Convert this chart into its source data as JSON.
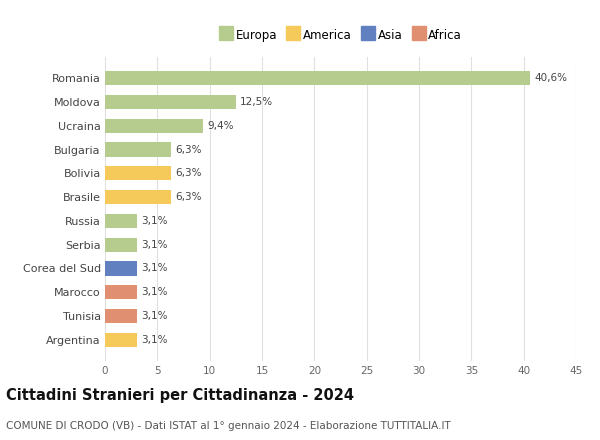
{
  "categories": [
    "Romania",
    "Moldova",
    "Ucraina",
    "Bulgaria",
    "Bolivia",
    "Brasile",
    "Russia",
    "Serbia",
    "Corea del Sud",
    "Marocco",
    "Tunisia",
    "Argentina"
  ],
  "values": [
    40.6,
    12.5,
    9.4,
    6.3,
    6.3,
    6.3,
    3.1,
    3.1,
    3.1,
    3.1,
    3.1,
    3.1
  ],
  "labels": [
    "40,6%",
    "12,5%",
    "9,4%",
    "6,3%",
    "6,3%",
    "6,3%",
    "3,1%",
    "3,1%",
    "3,1%",
    "3,1%",
    "3,1%",
    "3,1%"
  ],
  "colors": [
    "#b5cc8e",
    "#b5cc8e",
    "#b5cc8e",
    "#b5cc8e",
    "#f5ca5a",
    "#f5ca5a",
    "#b5cc8e",
    "#b5cc8e",
    "#6080c0",
    "#e09070",
    "#e09070",
    "#f5ca5a"
  ],
  "legend_labels": [
    "Europa",
    "America",
    "Asia",
    "Africa"
  ],
  "legend_colors": [
    "#b5cc8e",
    "#f5ca5a",
    "#6080c0",
    "#e09070"
  ],
  "title": "Cittadini Stranieri per Cittadinanza - 2024",
  "subtitle": "COMUNE DI CRODO (VB) - Dati ISTAT al 1° gennaio 2024 - Elaborazione TUTTITALIA.IT",
  "xlim": [
    0,
    45
  ],
  "xticks": [
    0,
    5,
    10,
    15,
    20,
    25,
    30,
    35,
    40,
    45
  ],
  "bg_color": "#ffffff",
  "grid_color": "#e0e0e0",
  "bar_height": 0.6,
  "label_fontsize": 7.5,
  "ytick_fontsize": 8,
  "xtick_fontsize": 7.5,
  "title_fontsize": 10.5,
  "subtitle_fontsize": 7.5,
  "legend_fontsize": 8.5
}
